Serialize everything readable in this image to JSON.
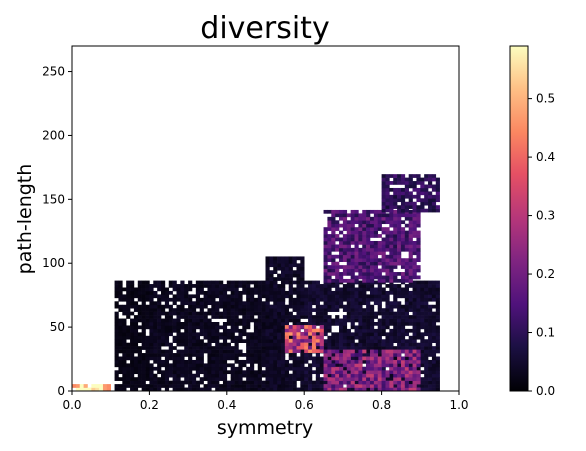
{
  "chart_data": {
    "type": "heatmap",
    "title": "diversity",
    "xlabel": "symmetry",
    "ylabel": "path-length",
    "xlim": [
      0.0,
      1.0
    ],
    "ylim": [
      0,
      270
    ],
    "x_ticks": [
      "0.0",
      "0.2",
      "0.4",
      "0.6",
      "0.8",
      "1.0"
    ],
    "x_tick_values": [
      0.0,
      0.2,
      0.4,
      0.6,
      0.8,
      1.0
    ],
    "y_ticks": [
      "0",
      "50",
      "100",
      "150",
      "200",
      "250"
    ],
    "y_tick_values": [
      0,
      50,
      100,
      150,
      200,
      250
    ],
    "colorbar": {
      "colormap": "magma",
      "range": [
        0.0,
        0.59
      ],
      "ticks": [
        "0.0",
        "0.1",
        "0.2",
        "0.3",
        "0.4",
        "0.5"
      ],
      "tick_values": [
        0.0,
        0.1,
        0.2,
        0.3,
        0.4,
        0.5
      ]
    },
    "bins": {
      "x_width": 0.01,
      "y_height": 2.7
    },
    "regions": [
      {
        "x": [
          0.0,
          0.1
        ],
        "y": [
          0,
          5
        ],
        "value": 0.55
      },
      {
        "x": [
          0.11,
          0.2
        ],
        "y": [
          0,
          85
        ],
        "value": 0.02
      },
      {
        "x": [
          0.2,
          0.55
        ],
        "y": [
          0,
          85
        ],
        "value": 0.03
      },
      {
        "x": [
          0.5,
          0.6
        ],
        "y": [
          0,
          105
        ],
        "value": 0.04
      },
      {
        "x": [
          0.6,
          0.95
        ],
        "y": [
          0,
          85
        ],
        "value": 0.05
      },
      {
        "x": [
          0.65,
          0.9
        ],
        "y": [
          85,
          140
        ],
        "value": 0.15
      },
      {
        "x": [
          0.8,
          0.95
        ],
        "y": [
          140,
          168
        ],
        "value": 0.1
      },
      {
        "x": [
          0.55,
          0.65
        ],
        "y": [
          30,
          50
        ],
        "value": 0.32
      },
      {
        "x": [
          0.65,
          0.9
        ],
        "y": [
          0,
          30
        ],
        "value": 0.22
      }
    ]
  }
}
